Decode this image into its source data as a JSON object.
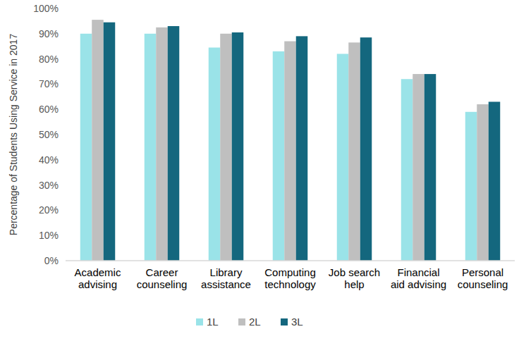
{
  "chart_data": {
    "type": "bar",
    "y_label": "Percentage of Students Using Service in 2017",
    "categories": [
      "Academic advising",
      "Career counseling",
      "Library assistance",
      "Computing technology",
      "Job search help",
      "Financial aid advising",
      "Personal counseling"
    ],
    "series": [
      {
        "name": "1L",
        "color": "#9ae3e8",
        "values": [
          90,
          90,
          84.5,
          83,
          82,
          72,
          59
        ]
      },
      {
        "name": "2L",
        "color": "#bfbfbf",
        "values": [
          95.5,
          92.5,
          90,
          87,
          86.5,
          74,
          62
        ]
      },
      {
        "name": "3L",
        "color": "#14677e",
        "values": [
          94.5,
          93,
          90.5,
          89,
          88.5,
          74,
          63
        ]
      }
    ],
    "ylim": [
      0,
      100
    ],
    "yticks": [
      {
        "value": 0,
        "label": "0%"
      },
      {
        "value": 10,
        "label": "10%"
      },
      {
        "value": 20,
        "label": "20%"
      },
      {
        "value": 30,
        "label": "30%"
      },
      {
        "value": 40,
        "label": "40%"
      },
      {
        "value": 50,
        "label": "50%"
      },
      {
        "value": 60,
        "label": "60%"
      },
      {
        "value": 70,
        "label": "70%"
      },
      {
        "value": 80,
        "label": "80%"
      },
      {
        "value": 90,
        "label": "90%"
      },
      {
        "value": 100,
        "label": "100%"
      }
    ],
    "grid": false,
    "legend": "bottom"
  }
}
